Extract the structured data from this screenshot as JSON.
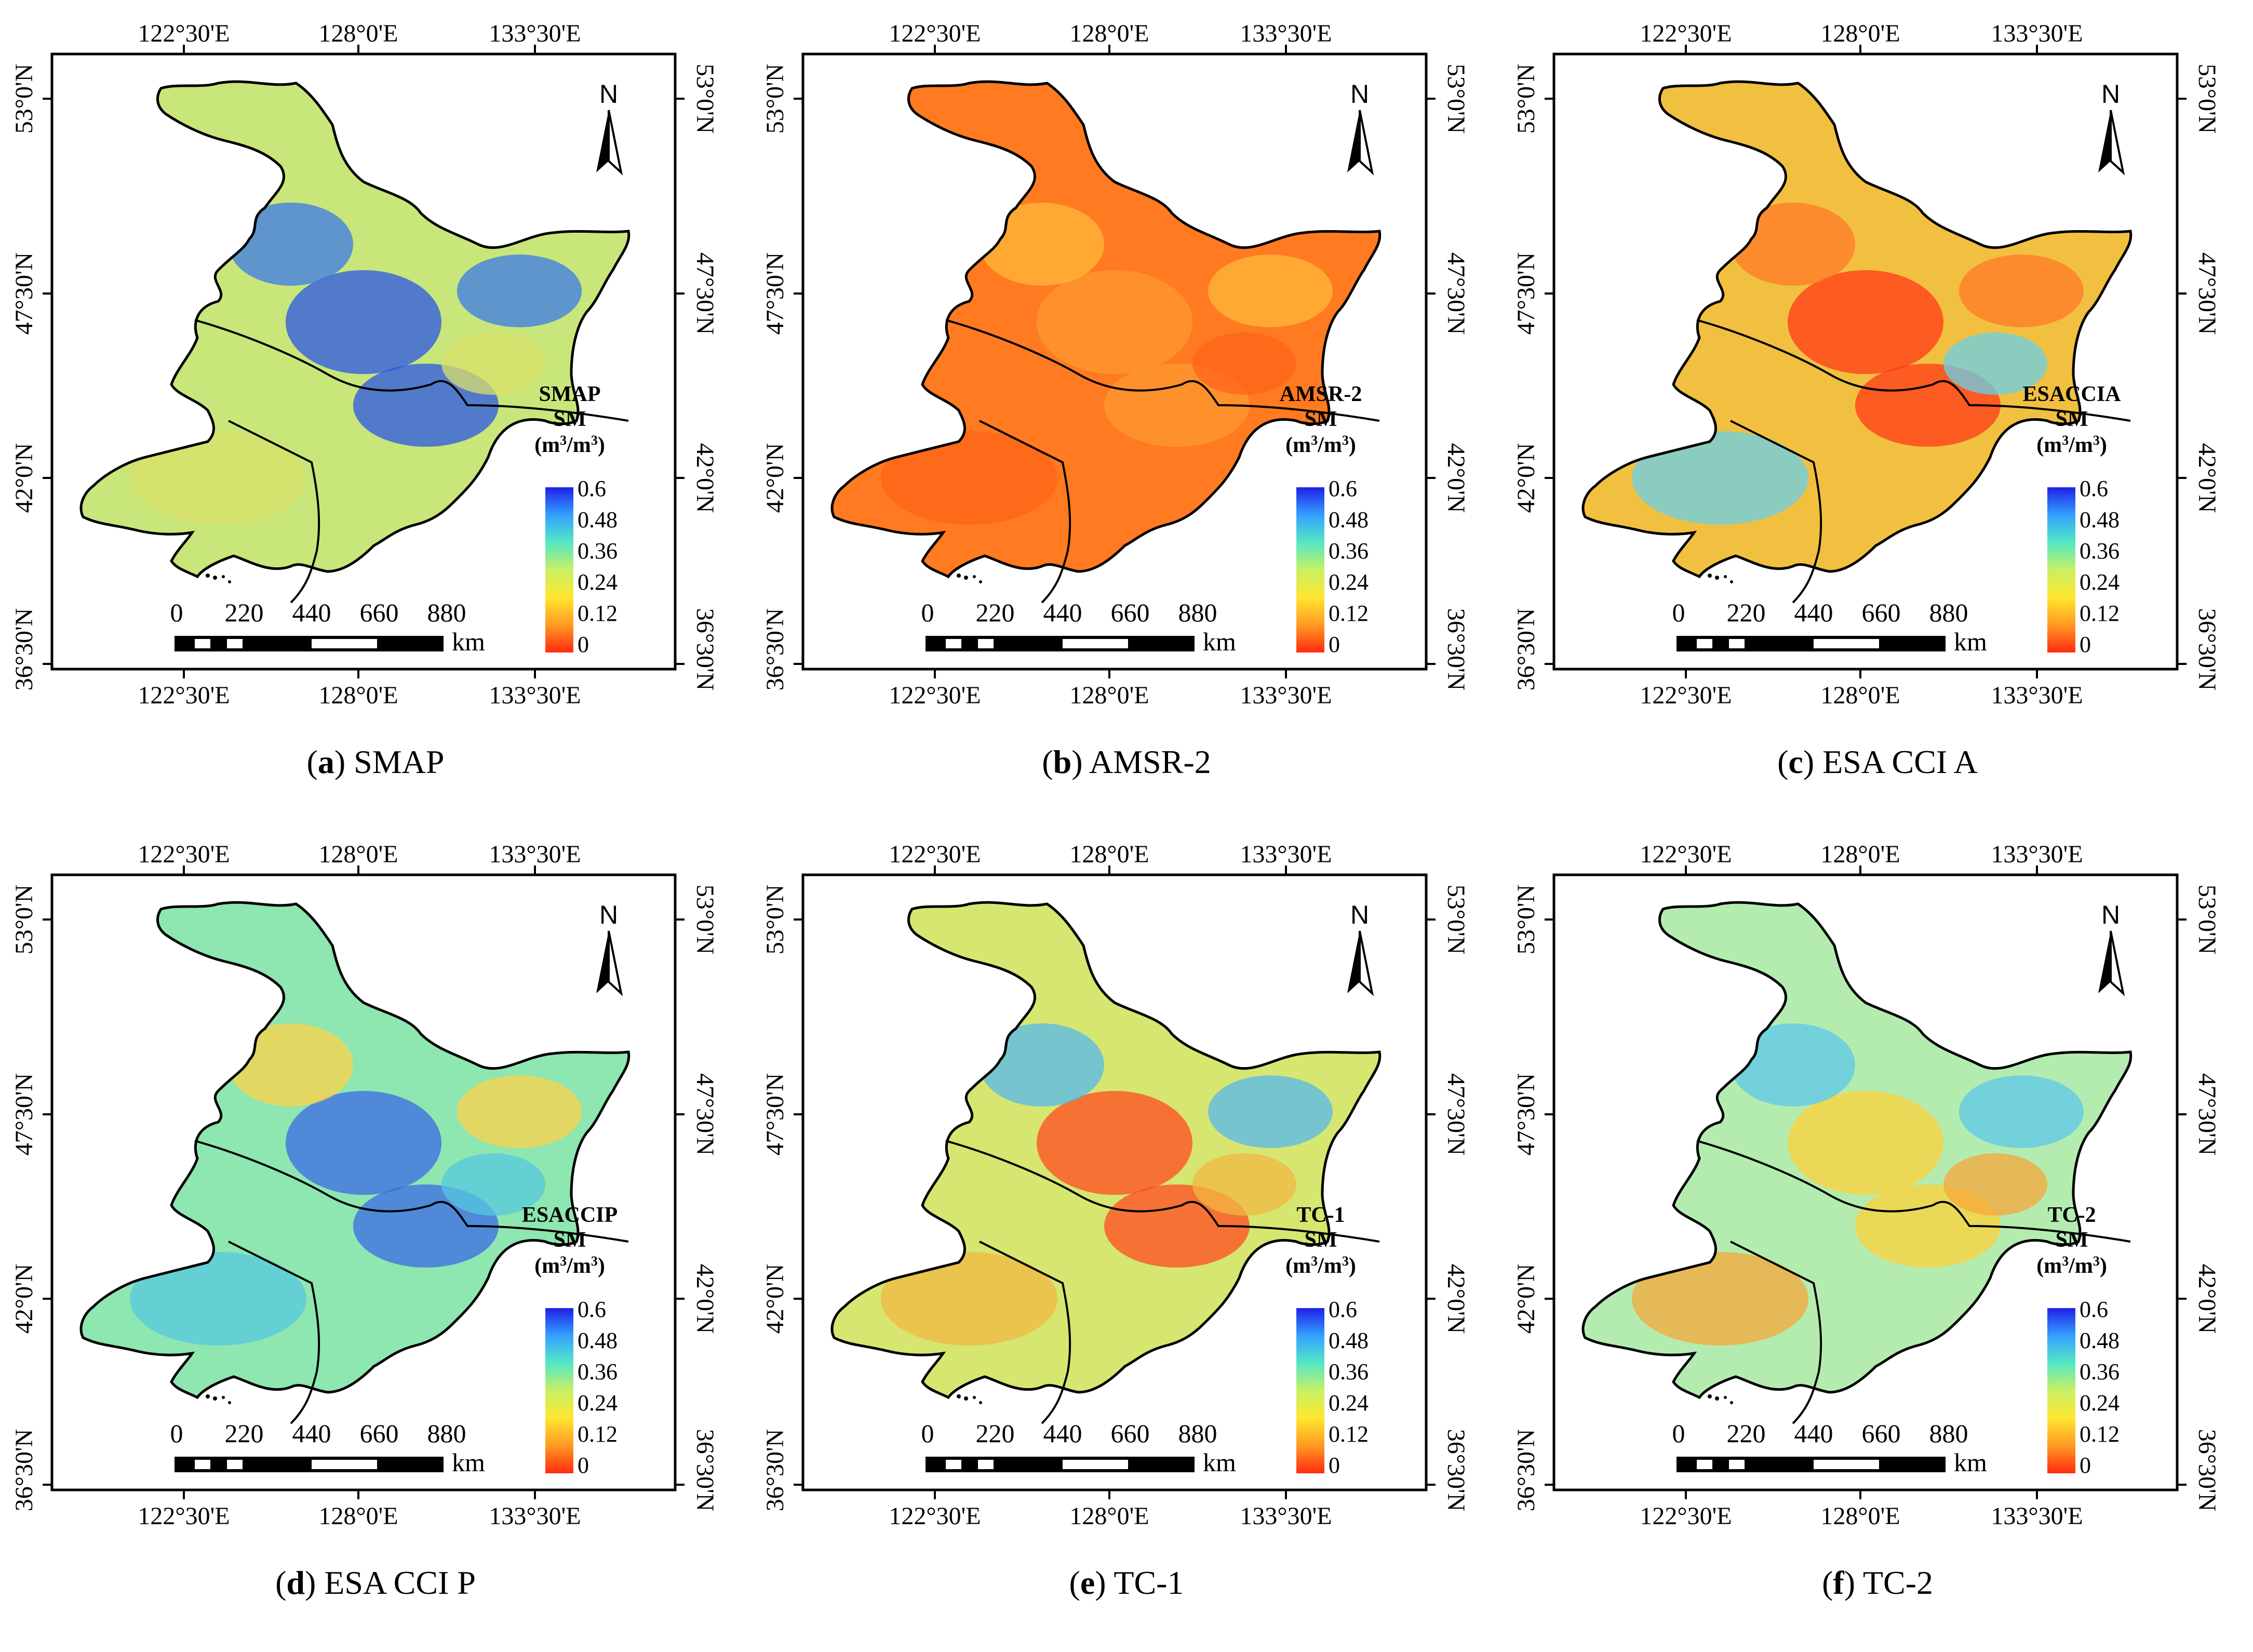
{
  "figure": {
    "colorbar": {
      "ticks": [
        "0.6",
        "0.48",
        "0.36",
        "0.24",
        "0.12",
        "0"
      ],
      "stops": [
        "#2020e6",
        "#33a0ff",
        "#55e8c4",
        "#c8f064",
        "#ffe630",
        "#ff9a22",
        "#ff2a10"
      ]
    },
    "axes": {
      "lon_labels": [
        "122°30'E",
        "128°0'E",
        "133°30'E"
      ],
      "lat_labels": [
        "53°0'N",
        "47°30'N",
        "42°0'N",
        "36°30'N"
      ]
    },
    "north_label": "N",
    "scale": {
      "ticks": [
        "0",
        "220",
        "440",
        "660",
        "880"
      ],
      "unit": "km"
    }
  },
  "panels": [
    {
      "letter": "a",
      "caption": "SMAP",
      "legend": [
        "SMAP",
        "SM"
      ],
      "fill": "#c8e67a",
      "blob_colors": [
        "#2b55e6",
        "#3a7ae8",
        "#d9e06a"
      ]
    },
    {
      "letter": "b",
      "caption": "AMSR-2",
      "legend": [
        "AMSR-2",
        "SM"
      ],
      "fill": "#ff7a20",
      "blob_colors": [
        "#ff9a30",
        "#ffb83a",
        "#ff6418"
      ]
    },
    {
      "letter": "c",
      "caption": "ESA CCI A",
      "legend": [
        "ESACCIA",
        "SM"
      ],
      "fill": "#f2c040",
      "blob_colors": [
        "#ff3a18",
        "#ff7a28",
        "#6ad0e8"
      ]
    },
    {
      "letter": "d",
      "caption": "ESA CCI P",
      "legend": [
        "ESACCIP",
        "SM"
      ],
      "fill": "#8ee6b0",
      "blob_colors": [
        "#3a6ae6",
        "#ffd24a",
        "#56c8e0"
      ]
    },
    {
      "letter": "e",
      "caption": "TC-1",
      "legend": [
        "TC-1",
        "SM"
      ],
      "fill": "#d6e670",
      "blob_colors": [
        "#ff4a20",
        "#56b8ec",
        "#f0b840"
      ]
    },
    {
      "letter": "f",
      "caption": "TC-2",
      "legend": [
        "TC-2",
        "SM"
      ],
      "fill": "#b4ecb0",
      "blob_colors": [
        "#ffd23a",
        "#5ec8ea",
        "#f6a83a"
      ]
    }
  ]
}
